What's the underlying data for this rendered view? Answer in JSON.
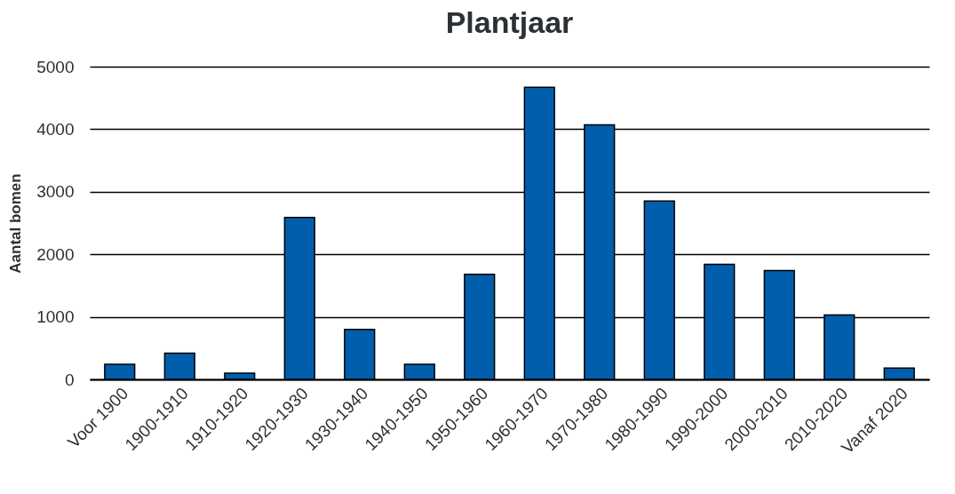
{
  "chart_data": {
    "type": "bar",
    "title": "Plantjaar",
    "ylabel": "Aantal bomen",
    "categories": [
      "Voor 1900",
      "1900-1910",
      "1910-1920",
      "1920-1930",
      "1930-1940",
      "1940-1950",
      "1950-1960",
      "1960-1970",
      "1970-1980",
      "1980-1990",
      "1990-2000",
      "2000-2010",
      "2010-2020",
      "Vanaf 2020"
    ],
    "values": [
      240,
      420,
      100,
      2590,
      800,
      240,
      1680,
      4670,
      4070,
      2850,
      1840,
      1740,
      1030,
      180
    ],
    "color": "#005eac",
    "ylim": [
      0,
      5000
    ],
    "yticks": [
      0,
      1000,
      2000,
      3000,
      4000,
      5000
    ],
    "grid": "y"
  }
}
